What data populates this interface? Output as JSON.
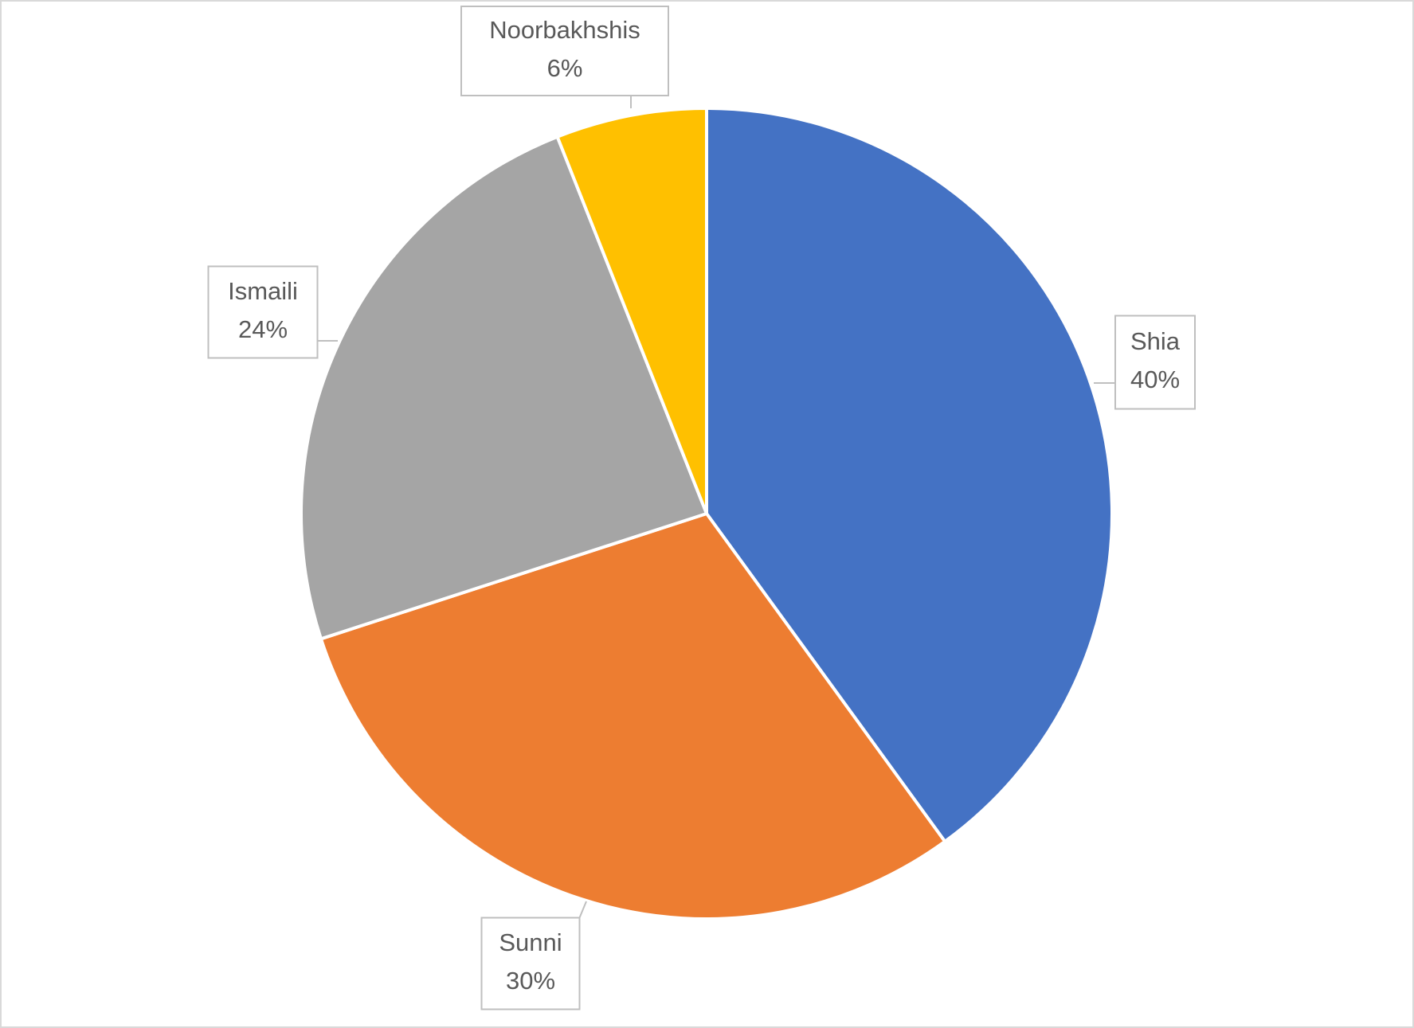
{
  "chart_data": {
    "type": "pie",
    "categories": [
      "Shia",
      "Sunni",
      "Ismaili",
      "Noorbakhshis"
    ],
    "values": [
      40,
      30,
      24,
      6
    ],
    "value_labels": [
      "40%",
      "30%",
      "24%",
      "6%"
    ],
    "colors": [
      "#4472c4",
      "#ed7d31",
      "#a5a5a5",
      "#ffc000"
    ]
  }
}
